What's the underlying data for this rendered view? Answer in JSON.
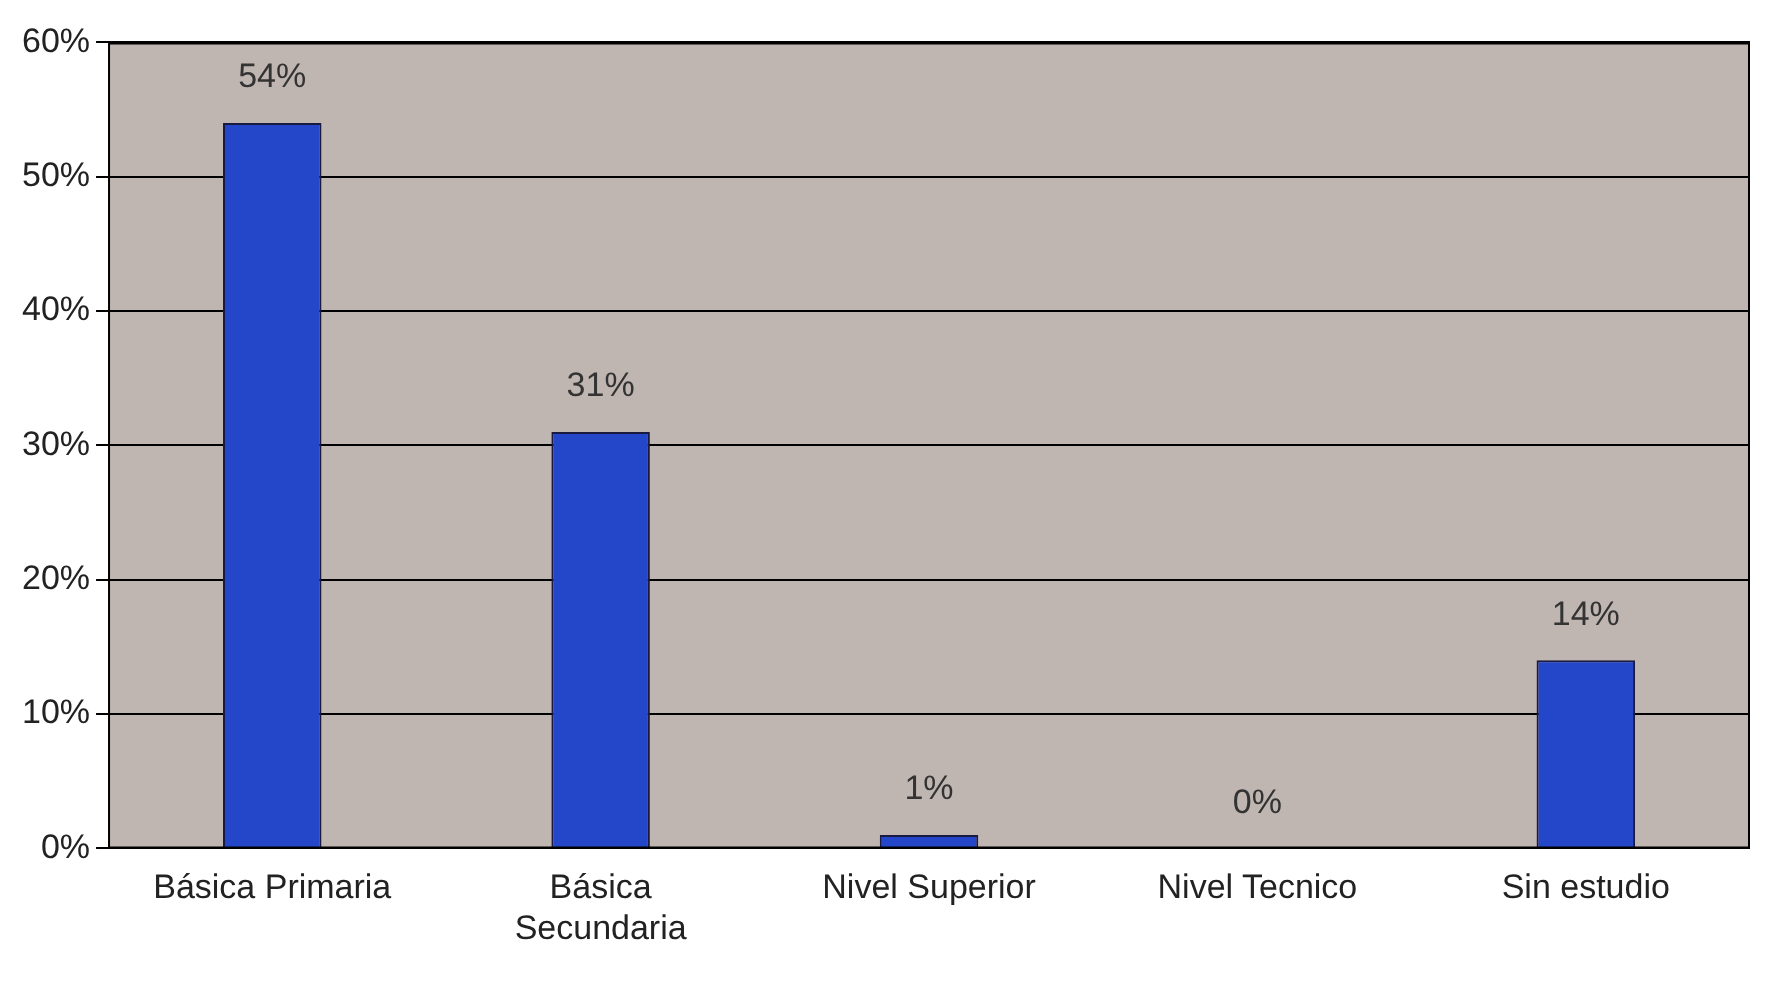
{
  "chart_data": {
    "type": "bar",
    "categories": [
      "Básica Primaria",
      "Básica Secundaria",
      "Nivel Superior",
      "Nivel Tecnico",
      "Sin estudio"
    ],
    "values": [
      54,
      31,
      1,
      0,
      14
    ],
    "value_labels": [
      "54%",
      "31%",
      "1%",
      "0%",
      "14%"
    ],
    "color": "#2446c8",
    "ylim": [
      0,
      60
    ],
    "yticks": [
      {
        "value": 0,
        "label": "0%"
      },
      {
        "value": 10,
        "label": "10%"
      },
      {
        "value": 20,
        "label": "20%"
      },
      {
        "value": 30,
        "label": "30%"
      },
      {
        "value": 40,
        "label": "40%"
      },
      {
        "value": 50,
        "label": "50%"
      },
      {
        "value": 60,
        "label": "60%"
      }
    ],
    "grid": "y"
  }
}
